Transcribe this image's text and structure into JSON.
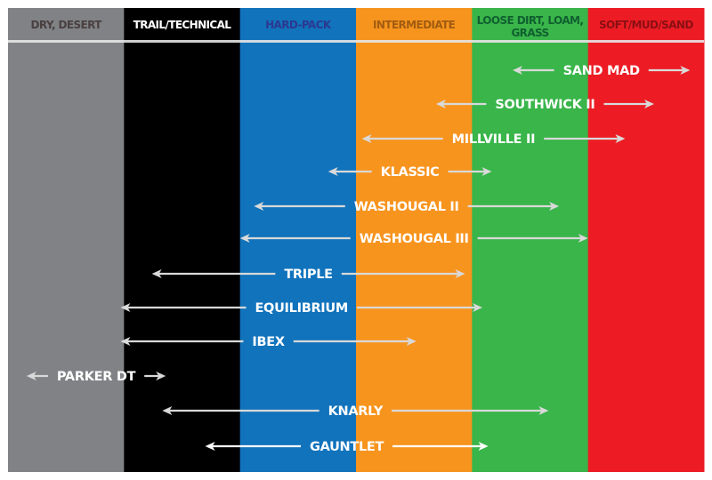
{
  "columns": [
    {
      "label": "DRY, DESERT",
      "bg": "#808285",
      "text": "#4a4040"
    },
    {
      "label": "TRAIL/TECHNICAL",
      "bg": "#000000",
      "text": "#ffffff"
    },
    {
      "label": "HARD-PACK",
      "bg": "#1173bc",
      "text": "#2b3990"
    },
    {
      "label": "INTERMEDIATE",
      "bg": "#f7941e",
      "text": "#a15c10"
    },
    {
      "label": "LOOSE DIRT, LOAM,|GRASS",
      "bg": "#39b54a",
      "text": "#106030"
    },
    {
      "label": "SOFT/MUD/SAND",
      "bg": "#ed1c24",
      "text": "#8a0f14"
    }
  ],
  "tires": [
    {
      "name": "SAND MAD",
      "range": [
        4.35,
        5.88
      ]
    },
    {
      "name": "SOUTHWICK II",
      "range": [
        3.69,
        5.57
      ]
    },
    {
      "name": "MILLVILLE II",
      "range": [
        3.05,
        5.32
      ]
    },
    {
      "name": "KLASSIC",
      "range": [
        2.76,
        4.17
      ]
    },
    {
      "name": "WASHOUGAL II",
      "range": [
        2.12,
        4.75
      ]
    },
    {
      "name": "WASHOUGAL III",
      "range": [
        2.0,
        5.0
      ]
    },
    {
      "name": "TRIPLE",
      "range": [
        1.24,
        3.94
      ]
    },
    {
      "name": "EQUILIBRIUM",
      "range": [
        0.97,
        4.09
      ]
    },
    {
      "name": "IBEX",
      "range": [
        0.97,
        3.52
      ]
    },
    {
      "name": "PARKER DT",
      "range": [
        0.16,
        1.36
      ]
    },
    {
      "name": "KNARLY",
      "range": [
        1.33,
        4.66
      ]
    },
    {
      "name": "GAUNTLET",
      "range": [
        1.7,
        4.14
      ],
      "highlight": true
    }
  ],
  "arrow_color": "#d9d9d9",
  "arrow_highlight_color": "#ffffff"
}
